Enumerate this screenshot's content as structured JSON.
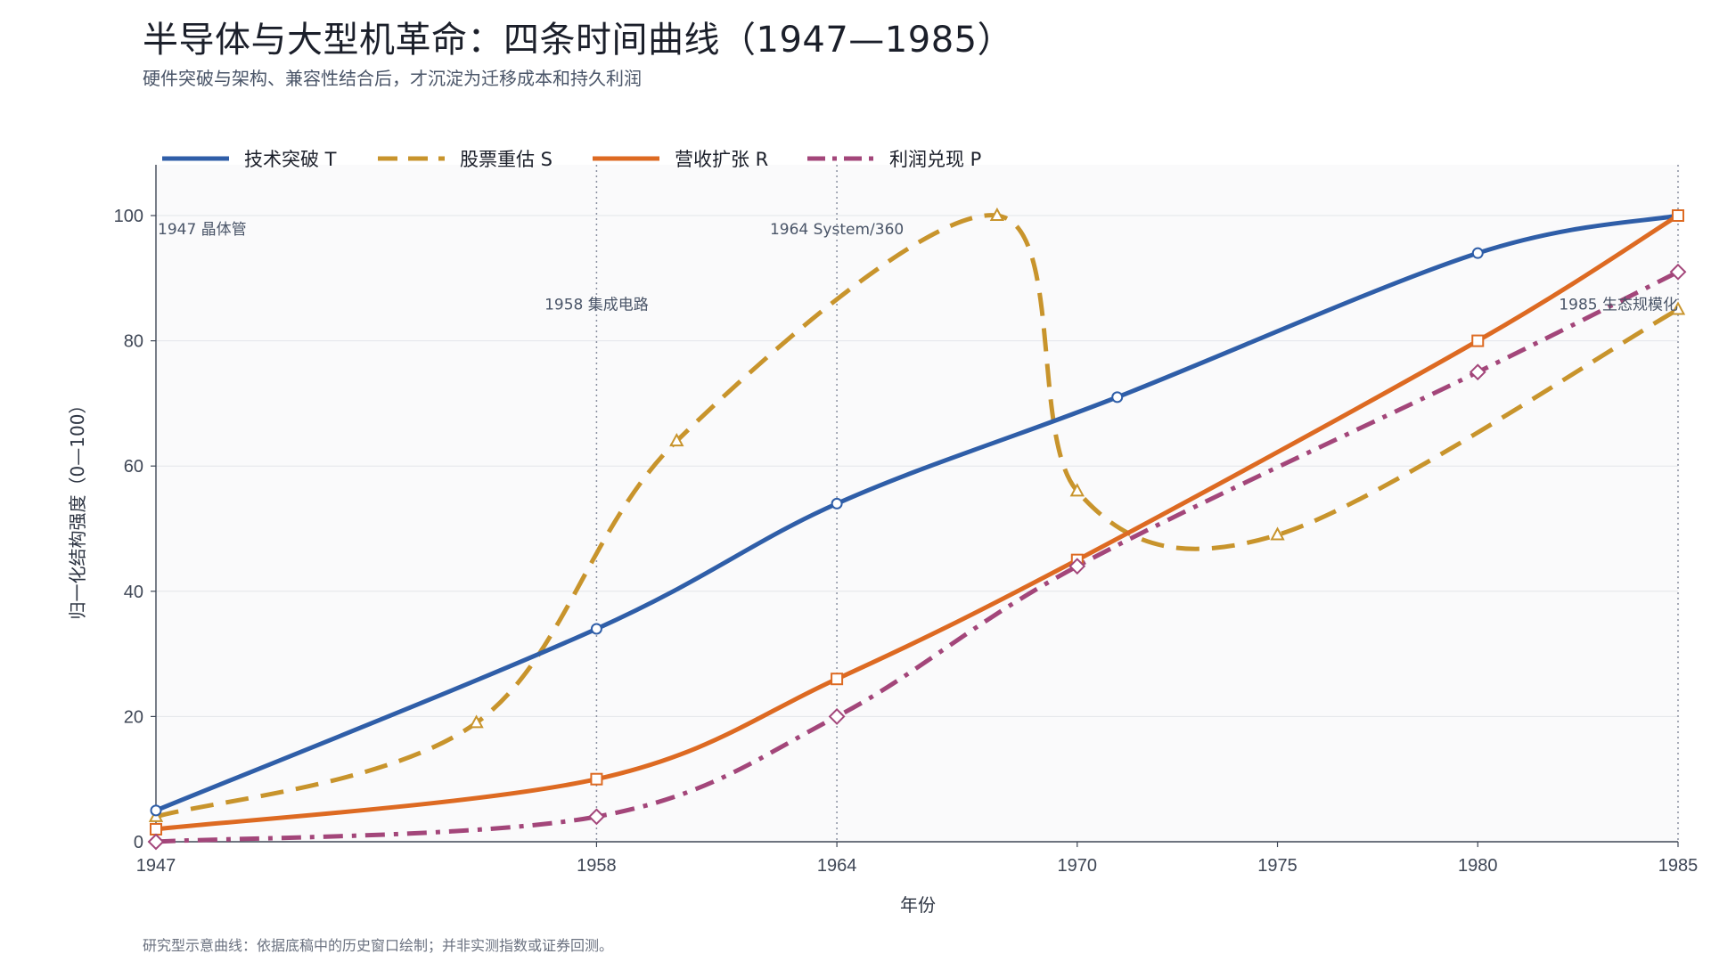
{
  "header": {
    "title": "半导体与大型机革命：四条时间曲线（1947—1985）",
    "subtitle": "硬件突破与架构、兼容性结合后，才沉淀为迁移成本和持久利润"
  },
  "footer": {
    "note": "研究型示意曲线：依据底稿中的历史窗口绘制；并非实测指数或证券回测。"
  },
  "chart_data": {
    "type": "line",
    "title": "半导体与大型机革命：四条时间曲线（1947—1985）",
    "subtitle": "硬件突破与架构、兼容性结合后，才沉淀为迁移成本和持久利润",
    "xlabel": "年份",
    "ylabel": "归一化结构强度（0—100）",
    "xlim": [
      1947,
      1985
    ],
    "ylim": [
      0,
      100
    ],
    "x_ticks": [
      1947,
      1958,
      1964,
      1970,
      1975,
      1980,
      1985
    ],
    "y_ticks": [
      0,
      20,
      40,
      60,
      80,
      100
    ],
    "grid": "horizontal",
    "legend": "top-left",
    "series": [
      {
        "name": "技术突破 T",
        "color": "#2f5ea8",
        "style": "solid",
        "marker": "circle",
        "points": [
          [
            1947,
            5
          ],
          [
            1958,
            34
          ],
          [
            1964,
            54
          ],
          [
            1971,
            71
          ],
          [
            1980,
            94
          ],
          [
            1985,
            100
          ]
        ]
      },
      {
        "name": "股票重估 S",
        "color": "#c8942c",
        "style": "dashed",
        "marker": "triangle",
        "points": [
          [
            1947,
            4
          ],
          [
            1955,
            19
          ],
          [
            1960,
            64
          ],
          [
            1968,
            100
          ],
          [
            1970,
            56
          ],
          [
            1975,
            49
          ],
          [
            1985,
            85
          ]
        ]
      },
      {
        "name": "营收扩张 R",
        "color": "#dd6a22",
        "style": "solid",
        "marker": "square",
        "points": [
          [
            1947,
            2
          ],
          [
            1958,
            10
          ],
          [
            1964,
            26
          ],
          [
            1970,
            45
          ],
          [
            1980,
            80
          ],
          [
            1985,
            100
          ]
        ]
      },
      {
        "name": "利润兑现 P",
        "color": "#a3467a",
        "style": "dashdot",
        "marker": "diamond",
        "points": [
          [
            1947,
            0
          ],
          [
            1958,
            4
          ],
          [
            1964,
            20
          ],
          [
            1970,
            44
          ],
          [
            1980,
            75
          ],
          [
            1985,
            91
          ]
        ]
      }
    ],
    "annotations": [
      {
        "year": 1947,
        "label": "1947  晶体管",
        "y": 98
      },
      {
        "year": 1958,
        "label": "1958  集成电路",
        "y": 86
      },
      {
        "year": 1964,
        "label": "1964  System/360",
        "y": 98
      },
      {
        "year": 1985,
        "label": "1985  生态规模化",
        "y": 86
      }
    ]
  }
}
